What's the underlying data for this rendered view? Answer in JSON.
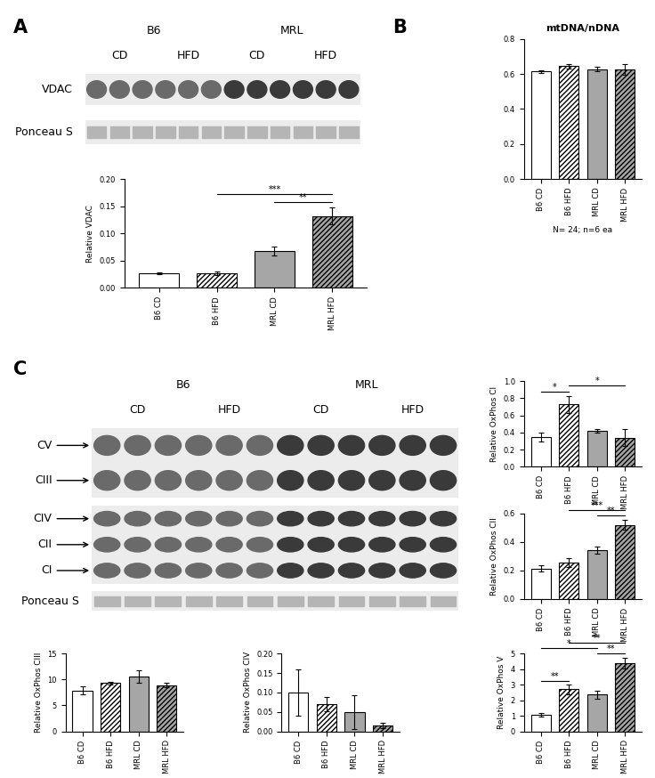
{
  "panel_labels": [
    "A",
    "B",
    "C"
  ],
  "blots": [
    {
      "groups": [
        "B6",
        "MRL"
      ],
      "diets": [
        "CD",
        "HFD",
        "CD",
        "HFD"
      ],
      "blocks": [
        [
          "VDAC"
        ],
        [
          "Ponceau S"
        ]
      ]
    },
    {
      "groups": [
        "B6",
        "MRL"
      ],
      "diets": [
        "CD",
        "HFD",
        "CD",
        "HFD"
      ],
      "blocks": [
        [
          "CV",
          "CIII"
        ],
        [
          "CIV",
          "CII",
          "CI"
        ],
        [
          "Ponceau S"
        ]
      ]
    }
  ],
  "chart_data": [
    {
      "type": "bar",
      "ylabel": "Relative VDAC",
      "categories": [
        "B6 CD",
        "B6 HFD",
        "MRL CD",
        "MRL HFD"
      ],
      "values": [
        0.027,
        0.027,
        0.068,
        0.132
      ],
      "errors": [
        0.002,
        0.003,
        0.008,
        0.016
      ],
      "colors": [
        "#ffffff",
        "#ffffff",
        "#a6a6a6",
        "#a6a6a6"
      ],
      "ylim": [
        0,
        0.2
      ],
      "yticks": [
        {
          "value": 0,
          "label": "0.00"
        },
        {
          "value": 0.05,
          "label": "0.05"
        },
        {
          "value": 0.1,
          "label": "0.10"
        },
        {
          "value": 0.15,
          "label": "0.15"
        },
        {
          "value": 0.2,
          "label": "0.20"
        }
      ],
      "annotations": [
        {
          "text": "***",
          "from": "B6 HFD",
          "to": "MRL HFD"
        },
        {
          "text": "**",
          "from": "MRL CD",
          "to": "MRL HFD"
        }
      ]
    },
    {
      "type": "bar",
      "title": "mtDNA/nDNA",
      "xlabel": "N= 24; n=6 ea",
      "categories": [
        "B6 CD",
        "B6 HFD",
        "MRL CD",
        "MRL HFD"
      ],
      "values": [
        0.615,
        0.645,
        0.627,
        0.627
      ],
      "errors": [
        0.008,
        0.012,
        0.012,
        0.03
      ],
      "colors": [
        "#ffffff",
        "#ffffff",
        "#a6a6a6",
        "#a6a6a6"
      ],
      "ylim": [
        0,
        0.8
      ],
      "yticks": [
        {
          "value": 0,
          "label": "0.0"
        },
        0.2,
        0.4,
        0.6,
        0.8
      ],
      "annotations": []
    },
    {
      "type": "bar",
      "ylabel": "Relative OxPhos CI",
      "categories": [
        "B6 CD",
        "B6 HFD",
        "MRL CD",
        "MRL HFD"
      ],
      "values": [
        0.35,
        0.73,
        0.42,
        0.34
      ],
      "errors": [
        0.05,
        0.1,
        0.02,
        0.1
      ],
      "colors": [
        "#ffffff",
        "#ffffff",
        "#a6a6a6",
        "#a6a6a6"
      ],
      "ylim": [
        0,
        1
      ],
      "yticks": [
        {
          "value": 0,
          "label": "0.0"
        },
        0.2,
        0.4,
        0.6,
        0.8,
        {
          "value": 1,
          "label": "1.0"
        }
      ],
      "annotations": [
        {
          "text": "*",
          "from": "B6 CD",
          "to": "B6 HFD"
        },
        {
          "text": "*",
          "from": "B6 HFD",
          "to": "MRL HFD"
        }
      ]
    },
    {
      "type": "bar",
      "ylabel": "Relative OxPhos CII",
      "categories": [
        "B6 CD",
        "B6 HFD",
        "MRL CD",
        "MRL HFD"
      ],
      "values": [
        0.215,
        0.255,
        0.345,
        0.52
      ],
      "errors": [
        0.02,
        0.03,
        0.025,
        0.035
      ],
      "colors": [
        "#ffffff",
        "#ffffff",
        "#a6a6a6",
        "#a6a6a6"
      ],
      "ylim": [
        0,
        0.6
      ],
      "yticks": [
        {
          "value": 0,
          "label": "0.0"
        },
        0.2,
        0.4,
        0.6
      ],
      "annotations": [
        {
          "text": "***",
          "from": "B6 HFD",
          "to": "MRL HFD"
        },
        {
          "text": "**",
          "from": "MRL CD",
          "to": "MRL HFD"
        }
      ]
    },
    {
      "type": "bar",
      "ylabel": "Relative OxPhos CIII",
      "categories": [
        "B6 CD",
        "B6 HFD",
        "MRL CD",
        "MRL HFD"
      ],
      "values": [
        7.9,
        9.3,
        10.5,
        8.9
      ],
      "errors": [
        0.8,
        0.3,
        1.2,
        0.4
      ],
      "colors": [
        "#ffffff",
        "#ffffff",
        "#a6a6a6",
        "#a6a6a6"
      ],
      "ylim": [
        0,
        15
      ],
      "yticks": [
        0,
        5,
        10,
        15
      ],
      "annotations": []
    },
    {
      "type": "bar",
      "ylabel": "Relative OxPhos CIV",
      "categories": [
        "B6 CD",
        "B6 HFD",
        "MRL CD",
        "MRL HFD"
      ],
      "values": [
        0.1,
        0.07,
        0.05,
        0.015
      ],
      "errors": [
        0.06,
        0.018,
        0.043,
        0.007
      ],
      "colors": [
        "#ffffff",
        "#ffffff",
        "#a6a6a6",
        "#a6a6a6"
      ],
      "ylim": [
        0,
        0.2
      ],
      "yticks": [
        {
          "value": 0,
          "label": "0.00"
        },
        {
          "value": 0.05,
          "label": "0.05"
        },
        {
          "value": 0.1,
          "label": "0.10"
        },
        {
          "value": 0.15,
          "label": "0.15"
        },
        {
          "value": 0.2,
          "label": "0.20"
        }
      ],
      "annotations": []
    },
    {
      "type": "bar",
      "ylabel": "Relative OxPhos V",
      "categories": [
        "B6 CD",
        "B6 HFD",
        "MRL CD",
        "MRL HFD"
      ],
      "values": [
        1.05,
        2.7,
        2.35,
        4.4
      ],
      "errors": [
        0.1,
        0.3,
        0.25,
        0.35
      ],
      "colors": [
        "#ffffff",
        "#ffffff",
        "#a6a6a6",
        "#a6a6a6"
      ],
      "ylim": [
        0,
        5
      ],
      "yticks": [
        0,
        1,
        2,
        3,
        4,
        5
      ],
      "annotations": [
        {
          "text": "**",
          "from": "B6 CD",
          "to": "B6 HFD"
        },
        {
          "text": "*",
          "from": "B6 CD",
          "to": "MRL CD"
        },
        {
          "text": "**",
          "from": "MRL CD",
          "to": "MRL HFD"
        },
        {
          "text": "**",
          "from": "B6 HFD",
          "to": "MRL HFD"
        }
      ]
    }
  ]
}
